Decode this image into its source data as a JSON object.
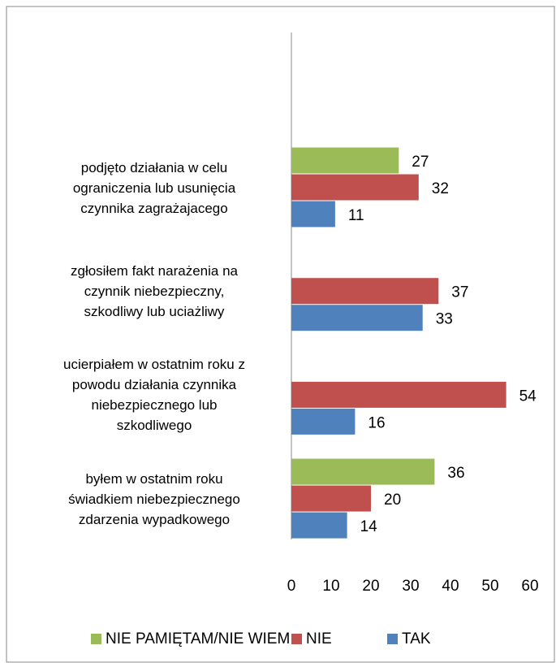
{
  "chart_data": {
    "type": "bar",
    "orientation": "horizontal",
    "categories": [
      "podjęto działania w celu\nograniczenia lub usunięcia\nczynnika zagrażajacego",
      "zgłosiłem fakt narażenia na\nczynnik niebezpieczny,\nszkodliwy lub uciażliwy",
      "ucierpiałem w ostatnim roku z\npowodu działania czynnika\nniebezpiecznego lub\nszkodliwego",
      "byłem w ostatnim roku\nświadkiem niebezpiecznego\nzdarzenia wypadkowego"
    ],
    "series": [
      {
        "name": "NIE PAMIĘTAM/NIE WIEM",
        "color": "#9bbb59",
        "values": [
          27,
          null,
          null,
          36
        ]
      },
      {
        "name": "NIE",
        "color": "#c0504d",
        "values": [
          32,
          37,
          54,
          20
        ]
      },
      {
        "name": "TAK",
        "color": "#4f81bd",
        "values": [
          11,
          33,
          16,
          14
        ]
      }
    ],
    "xlim": [
      0,
      60
    ],
    "xticks": [
      0,
      10,
      20,
      30,
      40,
      50,
      60
    ],
    "legend": "bottom"
  }
}
